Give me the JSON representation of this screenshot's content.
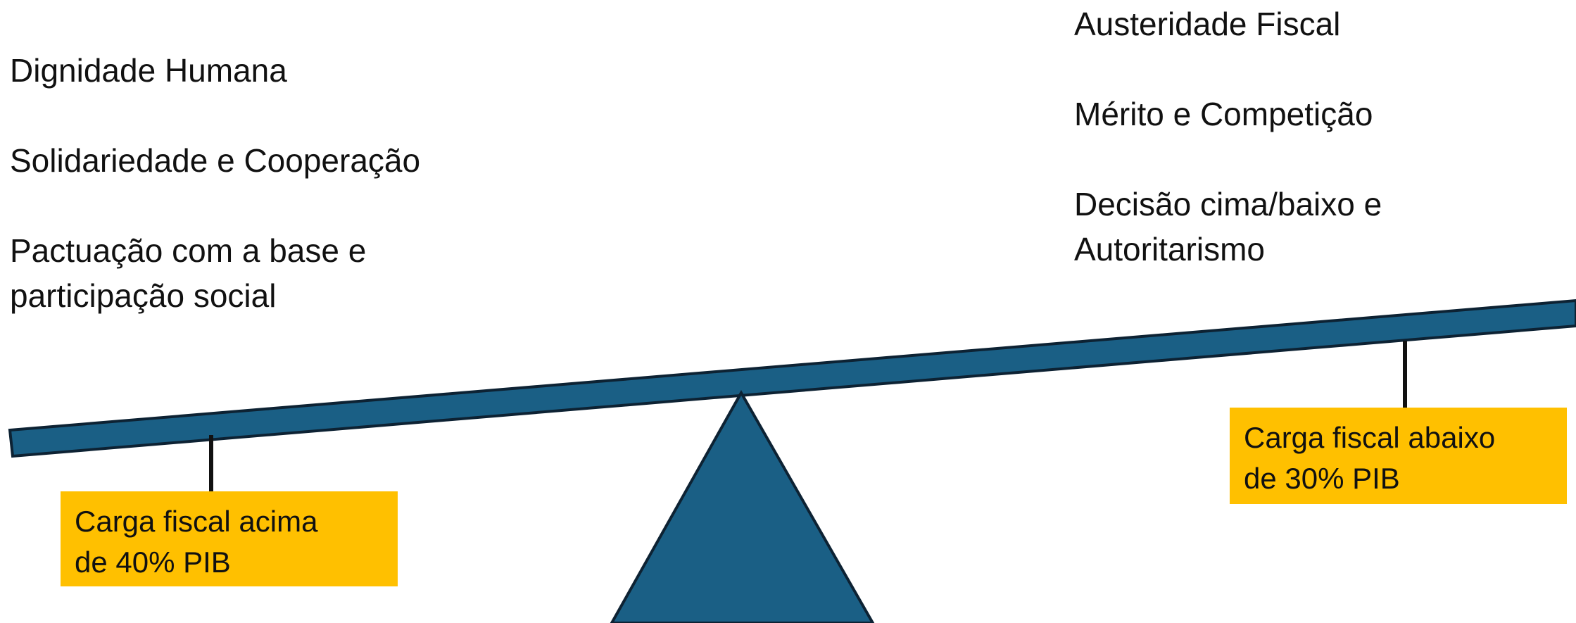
{
  "left_values": [
    {
      "lines": [
        "Dignidade Humana"
      ]
    },
    {
      "lines": [
        "Solidariedade e Cooperação"
      ]
    },
    {
      "lines": [
        "Pactuação com a base e",
        "participação social"
      ]
    }
  ],
  "right_values": [
    {
      "lines": [
        "Austeridade Fiscal"
      ]
    },
    {
      "lines": [
        "Mérito e Competição"
      ]
    },
    {
      "lines": [
        "Decisão cima/baixo e",
        "Autoritarismo"
      ]
    }
  ],
  "left_weight": {
    "lines": [
      "Carga fiscal acima",
      "de 40% PIB"
    ]
  },
  "right_weight": {
    "lines": [
      "Carga fiscal abaixo",
      "de 30% PIB"
    ]
  },
  "colors": {
    "beam": "#1a5f85",
    "fulcrum": "#1a5f85",
    "outline": "#0d2233",
    "weight_box": "#ffc000"
  }
}
